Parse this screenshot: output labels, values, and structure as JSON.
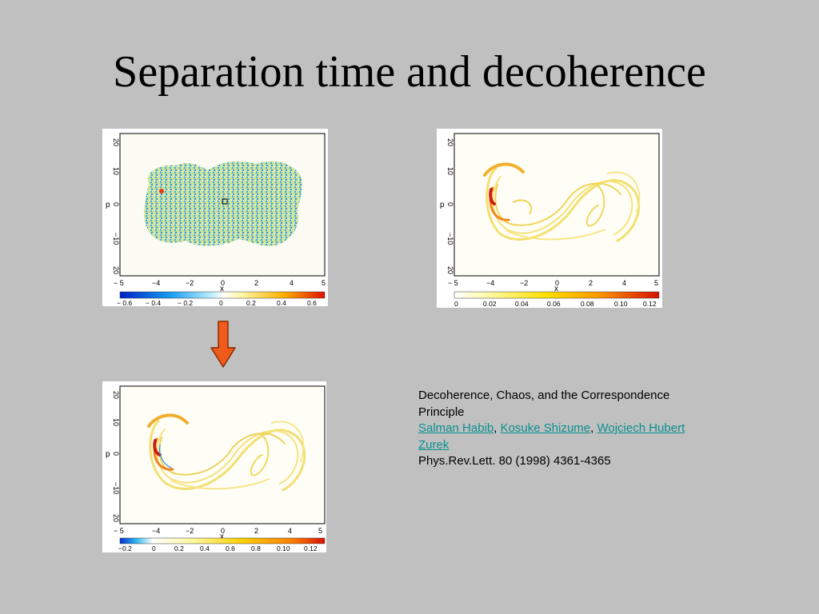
{
  "slide": {
    "title": "Separation time and decoherence"
  },
  "figures": {
    "top_left": {
      "y_axis_label": "p",
      "x_axis_label": "x",
      "y_ticks": [
        "20",
        "10",
        "0",
        "−10",
        "20"
      ],
      "x_ticks": [
        "− 5",
        "−4",
        "−2",
        "0",
        "2",
        "4",
        "5"
      ],
      "colorbar_ticks": [
        "− 0.6",
        "− 0.4",
        "− 0.2",
        "0",
        "0.2",
        "0.4",
        "0.6"
      ]
    },
    "top_right": {
      "y_axis_label": "p",
      "x_axis_label": "x",
      "y_ticks": [
        "20",
        "10",
        "0",
        "−10",
        "20"
      ],
      "x_ticks": [
        "− 5",
        "−4",
        "−2",
        "0",
        "2",
        "4",
        "5"
      ],
      "colorbar_ticks": [
        "0",
        "0.02",
        "0.04",
        "0.06",
        "0.08",
        "0.10",
        "0.12"
      ]
    },
    "bottom_left": {
      "y_axis_label": "p",
      "x_axis_label": "x",
      "y_ticks": [
        "20",
        "10",
        "0",
        "−10",
        "20"
      ],
      "x_ticks": [
        "− 5",
        "−4",
        "−2",
        "0",
        "2",
        "4",
        "5"
      ],
      "colorbar_ticks": [
        "−0.2",
        "0",
        "0.2",
        "0.4",
        "0.6",
        "0.8",
        "0.10",
        "0.12"
      ]
    }
  },
  "arrow": {
    "icon": "down-arrow-icon",
    "fill": "#f05a1a",
    "stroke": "#8a2a00"
  },
  "citation": {
    "title": "Decoherence, Chaos, and the Correspondence Principle",
    "authors": [
      {
        "name": "Salman Habib"
      },
      {
        "name": "Kosuke Shizume"
      },
      {
        "name": "Wojciech Hubert Zurek"
      }
    ],
    "separator": ", ",
    "journal": "Phys.Rev.Lett. 80 (1998) 4361-4365"
  },
  "colors": {
    "background": "#c0c0c0",
    "link": "#0a8f8f"
  }
}
